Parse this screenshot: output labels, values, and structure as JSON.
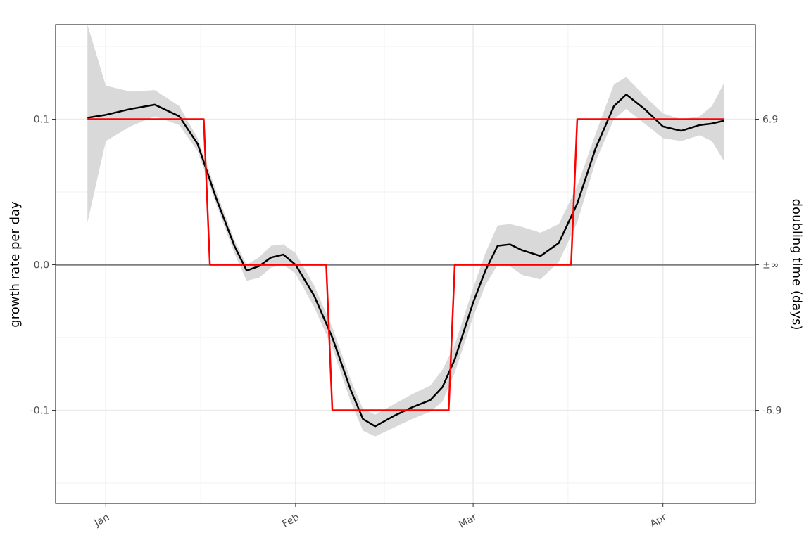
{
  "chart_data": {
    "type": "line",
    "y_label": "growth rate per day",
    "y2_label": "doubling time (days)",
    "xlim": [
      -8.2,
      106.1
    ],
    "xticks": [
      {
        "value": 0,
        "label": "Jan"
      },
      {
        "value": 31,
        "label": "Feb"
      },
      {
        "value": 60,
        "label": "Mar"
      },
      {
        "value": 91,
        "label": "Apr"
      }
    ],
    "x_minor_ticks": [
      15.5,
      45.5,
      75.5
    ],
    "ylim": [
      -0.164,
      0.165
    ],
    "yticks": [
      -0.1,
      {
        "value": 0,
        "label": "0.0"
      },
      0.1
    ],
    "y_minor_ticks": [
      -0.15,
      -0.05,
      0.05,
      0.15
    ],
    "y2lim": [
      -0.164,
      0.165
    ],
    "y2ticks": [
      {
        "value": -0.1,
        "label": "-6.9"
      },
      {
        "value": 0,
        "label": "±∞"
      },
      {
        "value": 0.1,
        "label": "6.9"
      }
    ],
    "hline": 0,
    "grid": true,
    "band": {
      "color": "#d9d9d9",
      "x": [
        -3,
        0,
        4,
        8,
        12,
        15,
        18,
        21,
        23,
        25,
        27,
        29,
        31,
        34,
        37,
        40,
        42,
        44,
        47,
        50,
        53,
        55,
        57,
        60,
        62,
        64,
        66,
        68,
        71,
        74,
        77,
        80,
        83,
        85,
        88,
        91,
        94,
        97,
        99,
        101
      ],
      "upper": [
        0.165,
        0.123,
        0.119,
        0.12,
        0.109,
        0.087,
        0.051,
        0.017,
        0.0,
        0.005,
        0.013,
        0.014,
        0.008,
        -0.014,
        -0.043,
        -0.079,
        -0.099,
        -0.103,
        -0.096,
        -0.089,
        -0.083,
        -0.072,
        -0.055,
        -0.016,
        0.008,
        0.027,
        0.028,
        0.026,
        0.022,
        0.028,
        0.054,
        0.09,
        0.124,
        0.129,
        0.116,
        0.104,
        0.1,
        0.102,
        0.109,
        0.125
      ],
      "lower": [
        0.029,
        0.085,
        0.095,
        0.102,
        0.096,
        0.078,
        0.042,
        0.008,
        -0.011,
        -0.009,
        -0.002,
        0.0,
        -0.006,
        -0.029,
        -0.057,
        -0.094,
        -0.114,
        -0.118,
        -0.112,
        -0.106,
        -0.101,
        -0.094,
        -0.074,
        -0.036,
        -0.014,
        0.0,
        -0.001,
        -0.007,
        -0.01,
        0.002,
        0.029,
        0.071,
        0.1,
        0.107,
        0.097,
        0.087,
        0.085,
        0.089,
        0.085,
        0.071
      ]
    },
    "series": [
      {
        "color": "#000000",
        "x": [
          -3,
          0,
          4,
          8,
          12,
          15,
          18,
          21,
          23,
          25,
          27,
          29,
          31,
          34,
          37,
          40,
          42,
          44,
          47,
          50,
          53,
          55,
          57,
          60,
          62,
          64,
          66,
          68,
          71,
          74,
          77,
          80,
          83,
          85,
          88,
          91,
          94,
          97,
          99,
          101
        ],
        "values": [
          0.101,
          0.103,
          0.107,
          0.11,
          0.102,
          0.083,
          0.046,
          0.013,
          -0.004,
          -0.001,
          0.005,
          0.007,
          0.0,
          -0.021,
          -0.05,
          -0.086,
          -0.106,
          -0.111,
          -0.104,
          -0.098,
          -0.093,
          -0.084,
          -0.065,
          -0.026,
          -0.004,
          0.013,
          0.014,
          0.01,
          0.006,
          0.015,
          0.042,
          0.08,
          0.109,
          0.117,
          0.107,
          0.095,
          0.092,
          0.096,
          0.097,
          0.099
        ]
      },
      {
        "color": "#ff0000",
        "x": [
          -3,
          16,
          17,
          36,
          37,
          56,
          57,
          76,
          77,
          101
        ],
        "values": [
          0.1,
          0.1,
          0,
          0,
          -0.1,
          -0.1,
          0,
          0,
          0.1,
          0.1
        ]
      }
    ]
  }
}
